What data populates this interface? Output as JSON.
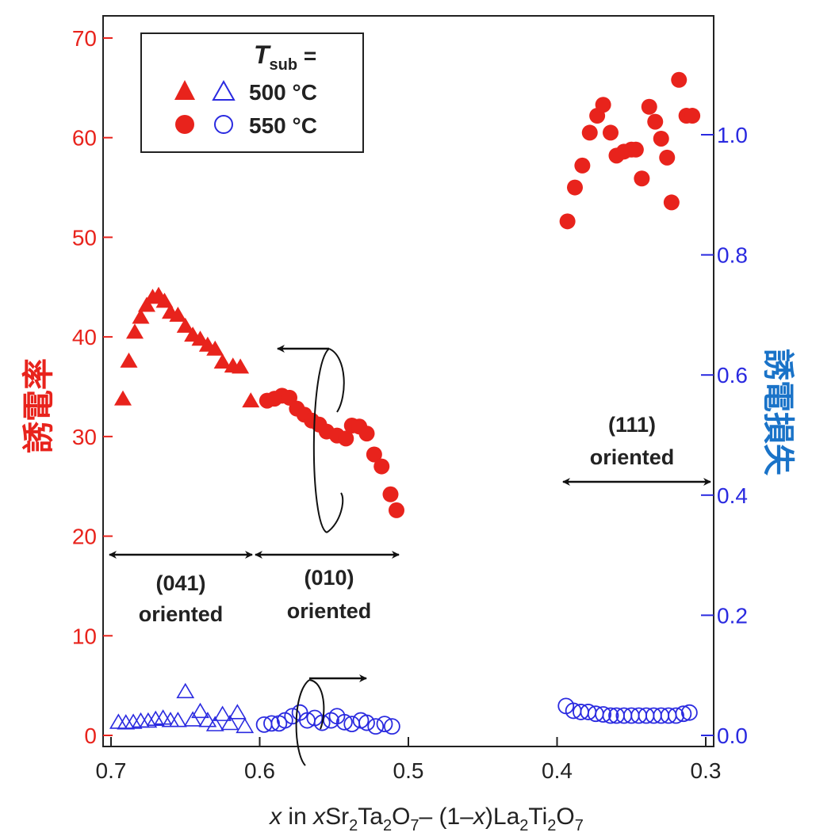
{
  "chart_data": {
    "type": "scatter",
    "xlabel": {
      "pre": "x in xSr",
      "parts": [
        {
          "t": "x",
          "style": "italic"
        },
        {
          "t": " in "
        },
        {
          "t": "x",
          "style": "italic"
        },
        {
          "t": "Sr"
        },
        {
          "t": "2",
          "style": "sub"
        },
        {
          "t": "Ta"
        },
        {
          "t": "2",
          "style": "sub"
        },
        {
          "t": "O"
        },
        {
          "t": "7",
          "style": "sub"
        },
        {
          "t": "– (1–"
        },
        {
          "t": "x",
          "style": "italic"
        },
        {
          "t": ")La"
        },
        {
          "t": "2",
          "style": "sub"
        },
        {
          "t": "Ti"
        },
        {
          "t": "2",
          "style": "sub"
        },
        {
          "t": "O"
        },
        {
          "t": "7",
          "style": "sub"
        }
      ]
    },
    "ylabel_left": "誘電率",
    "ylabel_right": "誘電損失",
    "xlim": [
      0.7,
      0.3
    ],
    "xticks": [
      "0.7",
      "0.6",
      "0.5",
      "0.4",
      "0.3"
    ],
    "ylim_left": [
      0,
      70
    ],
    "yticks_left": [
      "0",
      "10",
      "20",
      "30",
      "40",
      "50",
      "60",
      "70"
    ],
    "ylim_right": [
      0,
      1.2
    ],
    "yticks_right": [
      "0.0",
      "0.2",
      "0.4",
      "0.6",
      "0.8",
      "1.0"
    ],
    "colors": {
      "left": "#e8231c",
      "right": "#2a2ae0",
      "right_label": "#1a73c8"
    },
    "legend": {
      "title_T": "T",
      "title_sub": "sub",
      "title_eq": " =",
      "entries": [
        "500 °C",
        "550 °C"
      ],
      "placement": "top-left"
    },
    "annotations": {
      "a041": [
        "(041)",
        "oriented"
      ],
      "a010": [
        "(010)",
        "oriented"
      ],
      "a111": [
        "(111)",
        "oriented"
      ]
    },
    "series": [
      {
        "marker": "triangle",
        "fill": "solid",
        "axis": "left",
        "x": [
          0.692,
          0.688,
          0.684,
          0.68,
          0.676,
          0.672,
          0.668,
          0.664,
          0.66,
          0.655,
          0.65,
          0.645,
          0.64,
          0.635,
          0.63,
          0.625,
          0.618,
          0.613,
          0.606
        ],
        "y": [
          33.8,
          37.6,
          40.5,
          42.0,
          43.2,
          44.0,
          44.2,
          43.6,
          42.5,
          42.2,
          41.1,
          40.2,
          39.8,
          39.2,
          38.8,
          37.5,
          37.1,
          37.0,
          33.6
        ]
      },
      {
        "marker": "circle",
        "fill": "solid",
        "axis": "left",
        "x": [
          0.595,
          0.59,
          0.585,
          0.58,
          0.575,
          0.57,
          0.565,
          0.56,
          0.555,
          0.548,
          0.542,
          0.538,
          0.533,
          0.528,
          0.523,
          0.518,
          0.512,
          0.508,
          0.393,
          0.388,
          0.383,
          0.378,
          0.373,
          0.369,
          0.364,
          0.36,
          0.355,
          0.35,
          0.347,
          0.343,
          0.338,
          0.334,
          0.33,
          0.326,
          0.323,
          0.318,
          0.313,
          0.309
        ],
        "y": [
          33.6,
          33.8,
          34.1,
          33.9,
          32.8,
          32.2,
          31.6,
          31.2,
          30.5,
          30.1,
          29.8,
          31.1,
          31.0,
          30.3,
          28.2,
          27.0,
          24.2,
          22.6,
          51.6,
          55.0,
          57.2,
          60.5,
          62.2,
          63.3,
          60.5,
          58.2,
          58.6,
          58.8,
          58.8,
          55.9,
          63.1,
          61.6,
          59.9,
          58.0,
          53.5,
          65.8,
          62.2,
          62.2
        ]
      },
      {
        "marker": "triangle",
        "fill": "open",
        "axis": "right",
        "x": [
          0.695,
          0.69,
          0.685,
          0.68,
          0.675,
          0.67,
          0.665,
          0.66,
          0.655,
          0.65,
          0.645,
          0.64,
          0.635,
          0.63,
          0.625,
          0.62,
          0.615,
          0.61
        ],
        "y": [
          0.022,
          0.021,
          0.022,
          0.024,
          0.024,
          0.027,
          0.029,
          0.025,
          0.025,
          0.073,
          0.026,
          0.04,
          0.025,
          0.018,
          0.035,
          0.02,
          0.038,
          0.015
        ]
      },
      {
        "marker": "circle",
        "fill": "open",
        "axis": "right",
        "x": [
          0.597,
          0.592,
          0.587,
          0.583,
          0.578,
          0.573,
          0.568,
          0.563,
          0.558,
          0.552,
          0.548,
          0.543,
          0.538,
          0.532,
          0.528,
          0.522,
          0.516,
          0.511,
          0.394,
          0.389,
          0.384,
          0.379,
          0.374,
          0.369,
          0.364,
          0.36,
          0.355,
          0.35,
          0.345,
          0.34,
          0.335,
          0.33,
          0.325,
          0.32,
          0.315,
          0.311
        ],
        "y": [
          0.018,
          0.02,
          0.02,
          0.025,
          0.032,
          0.038,
          0.025,
          0.029,
          0.021,
          0.025,
          0.032,
          0.022,
          0.019,
          0.025,
          0.021,
          0.015,
          0.019,
          0.015,
          0.049,
          0.041,
          0.039,
          0.039,
          0.036,
          0.035,
          0.033,
          0.033,
          0.033,
          0.033,
          0.033,
          0.033,
          0.033,
          0.033,
          0.033,
          0.033,
          0.036,
          0.038
        ]
      }
    ]
  }
}
